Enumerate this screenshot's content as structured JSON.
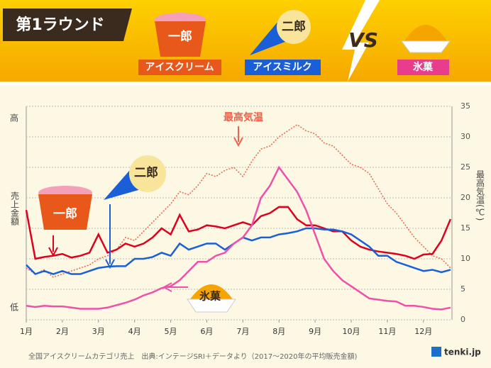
{
  "header": {
    "title": "第1ラウンド",
    "vs": "VS",
    "items": [
      {
        "icon_label": "一郎",
        "category": "アイスクリーム"
      },
      {
        "icon_label": "二郎",
        "category": "アイスミルク"
      },
      {
        "category": "氷菓"
      }
    ]
  },
  "chart_data": {
    "type": "line",
    "x": [
      1,
      1.25,
      1.5,
      1.75,
      2,
      2.25,
      2.5,
      2.75,
      3,
      3.25,
      3.5,
      3.75,
      4,
      4.25,
      4.5,
      4.75,
      5,
      5.25,
      5.5,
      5.75,
      6,
      6.25,
      6.5,
      6.75,
      7,
      7.25,
      7.5,
      7.75,
      8,
      8.25,
      8.5,
      8.75,
      9,
      9.25,
      9.5,
      9.75,
      10,
      10.25,
      10.5,
      10.75,
      11,
      11.25,
      11.5,
      11.75,
      12,
      12.25,
      12.5,
      12.75
    ],
    "xlim": [
      1,
      12.79
    ],
    "xticks": [
      {
        "value": 1,
        "label": "1月"
      },
      {
        "value": 2,
        "label": "2月"
      },
      {
        "value": 3,
        "label": "3月"
      },
      {
        "value": 4,
        "label": "4月"
      },
      {
        "value": 5,
        "label": "5月"
      },
      {
        "value": 6,
        "label": "6月"
      },
      {
        "value": 7,
        "label": "7月"
      },
      {
        "value": 8,
        "label": "8月"
      },
      {
        "value": 9,
        "label": "9月"
      },
      {
        "value": 10,
        "label": "10月"
      },
      {
        "value": 11,
        "label": "11月"
      },
      {
        "value": 12,
        "label": "12月"
      }
    ],
    "ylim": [
      0,
      35
    ],
    "ylabel": "売上金額",
    "yticks": [
      {
        "value": 33,
        "label": "高"
      },
      {
        "value": 2,
        "label": "低"
      }
    ],
    "y2lim": [
      0,
      35
    ],
    "y2label": "最高気温(℃)",
    "y2ticks": [
      0,
      5,
      10,
      15,
      20,
      25,
      30,
      35
    ],
    "grid": true,
    "series": [
      {
        "name": "最高気温",
        "color": "#f0604a",
        "style": "dotted",
        "axis": "y2",
        "values": [
          8.5,
          7.5,
          8.2,
          7.0,
          7.5,
          8.0,
          8.5,
          9.0,
          10.0,
          10.5,
          11.5,
          13.5,
          13.0,
          14.5,
          16.0,
          17.5,
          19.0,
          21.0,
          20.5,
          22.0,
          24.0,
          23.5,
          24.5,
          25.0,
          23.5,
          26.0,
          28.0,
          28.5,
          30.0,
          31.0,
          32.0,
          31.0,
          30.5,
          29.0,
          28.5,
          27.0,
          25.5,
          25.0,
          24.0,
          21.5,
          19.0,
          17.5,
          15.5,
          13.5,
          12.0,
          10.5,
          10.0,
          8.5
        ]
      },
      {
        "name": "一郎",
        "color": "#e0001e",
        "style": "solid",
        "values": [
          18,
          10,
          10.3,
          10.5,
          10.8,
          10.2,
          10.5,
          11,
          14,
          11,
          11.5,
          12.5,
          12,
          12.5,
          13.5,
          15,
          14,
          17.2,
          14.5,
          14.8,
          15.5,
          15.3,
          15,
          15.5,
          16,
          15.5,
          17,
          17.5,
          18.5,
          18.5,
          16.5,
          15.5,
          15.5,
          15,
          14.5,
          14.5,
          13,
          12,
          11.5,
          11.2,
          11,
          10.8,
          10.5,
          10,
          10.7,
          10.8,
          13,
          16.5
        ]
      },
      {
        "name": "二郎",
        "color": "#1a5fd8",
        "style": "solid",
        "values": [
          9,
          7.5,
          8,
          7.5,
          8,
          7.5,
          7.5,
          8,
          8.5,
          8.7,
          8.8,
          8.8,
          10,
          10,
          10.3,
          11,
          10.5,
          12.5,
          11.5,
          12,
          12.5,
          12.5,
          11.5,
          12.5,
          13.5,
          13,
          13.5,
          13.5,
          14,
          14.2,
          14.5,
          15,
          15,
          14.8,
          14.8,
          14.5,
          14,
          13,
          12,
          10.5,
          10.5,
          9.5,
          9,
          8.5,
          8,
          8.2,
          7.8,
          8.2
        ]
      },
      {
        "name": "氷菓",
        "color": "#f050a8",
        "style": "solid",
        "values": [
          2.3,
          2.1,
          2.3,
          2.2,
          2.2,
          2.0,
          1.8,
          1.8,
          1.8,
          2.0,
          2.4,
          2.8,
          3.3,
          4.0,
          4.5,
          5.2,
          5.5,
          6.5,
          8.0,
          9.5,
          9.5,
          10.5,
          11,
          12.5,
          13.5,
          15.5,
          20,
          22,
          25,
          23,
          21,
          18,
          14,
          10,
          8,
          6.5,
          5.5,
          4.5,
          3.5,
          3.3,
          3.1,
          3.0,
          2.3,
          2.3,
          2.1,
          1.8,
          1.7,
          2.0
        ]
      }
    ],
    "note": "全国アイスクリームカテゴリ売上　出典:インテージSRI＋データより（2017〜2020年の平均販売金額)",
    "brand": "tenki.jp"
  }
}
